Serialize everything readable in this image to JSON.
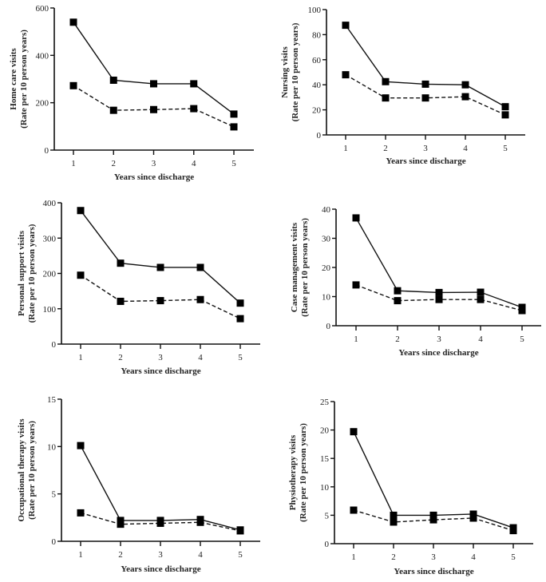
{
  "chart_data": [
    {
      "id": "home-care",
      "type": "line",
      "title": "",
      "xlabel": "Years since discharge",
      "ylabel": [
        "Home care visits",
        "(Rate per 10 person years)"
      ],
      "x": [
        1,
        2,
        3,
        4,
        5
      ],
      "xticks": [
        "1",
        "2",
        "3",
        "4",
        "5"
      ],
      "ylim": [
        0,
        600
      ],
      "yticks": [
        0,
        200,
        400,
        600
      ],
      "grid": false,
      "series": [
        {
          "name": "series-solid",
          "style": "solid",
          "marker": "square",
          "values": [
            540,
            295,
            280,
            280,
            152
          ]
        },
        {
          "name": "series-dashed",
          "style": "dashed",
          "marker": "square",
          "values": [
            272,
            168,
            171,
            175,
            98
          ]
        }
      ]
    },
    {
      "id": "nursing",
      "type": "line",
      "title": "",
      "xlabel": "Years since discharge",
      "ylabel": [
        "Nursing visits",
        "(Rate per 10 person years)"
      ],
      "x": [
        1,
        2,
        3,
        4,
        5
      ],
      "xticks": [
        "1",
        "2",
        "3",
        "4",
        "5"
      ],
      "ylim": [
        0,
        100
      ],
      "yticks": [
        0,
        20,
        40,
        60,
        80,
        100
      ],
      "grid": false,
      "series": [
        {
          "name": "series-solid",
          "style": "solid",
          "marker": "square",
          "values": [
            87.5,
            42.5,
            40.5,
            40,
            22.5
          ]
        },
        {
          "name": "series-dashed",
          "style": "dashed",
          "marker": "square",
          "values": [
            48,
            29.5,
            29.5,
            30.5,
            16
          ]
        }
      ]
    },
    {
      "id": "personal-support",
      "type": "line",
      "title": "",
      "xlabel": "Years since discharge",
      "ylabel": [
        "Personal support visits",
        "(Rate per 10 person years)"
      ],
      "x": [
        1,
        2,
        3,
        4,
        5
      ],
      "xticks": [
        "1",
        "2",
        "3",
        "4",
        "5"
      ],
      "ylim": [
        0,
        400
      ],
      "yticks": [
        0,
        100,
        200,
        300,
        400
      ],
      "grid": false,
      "series": [
        {
          "name": "series-solid",
          "style": "solid",
          "marker": "square",
          "values": [
            378,
            229,
            217,
            217,
            116
          ]
        },
        {
          "name": "series-dashed",
          "style": "dashed",
          "marker": "square",
          "values": [
            195,
            121,
            123,
            126,
            72
          ]
        }
      ]
    },
    {
      "id": "case-management",
      "type": "line",
      "title": "",
      "xlabel": "Years since discharge",
      "ylabel": [
        "Case management visits",
        "(Rate per 10 person years)"
      ],
      "x": [
        1,
        2,
        3,
        4,
        5
      ],
      "xticks": [
        "1",
        "2",
        "3",
        "4",
        "5"
      ],
      "ylim": [
        0,
        40
      ],
      "yticks": [
        0,
        10,
        20,
        30,
        40
      ],
      "grid": false,
      "series": [
        {
          "name": "series-solid",
          "style": "solid",
          "marker": "square",
          "values": [
            37,
            12,
            11.4,
            11.5,
            6.3
          ]
        },
        {
          "name": "series-dashed",
          "style": "dashed",
          "marker": "square",
          "values": [
            14,
            8.6,
            9,
            9,
            5.2
          ]
        }
      ]
    },
    {
      "id": "occupational-therapy",
      "type": "line",
      "title": "",
      "xlabel": "Years since discharge",
      "ylabel": [
        "Occupational therapy visits",
        "(Rate per 10 person years)"
      ],
      "x": [
        1,
        2,
        3,
        4,
        5
      ],
      "xticks": [
        "1",
        "2",
        "3",
        "4",
        "5"
      ],
      "ylim": [
        0,
        15
      ],
      "yticks": [
        0,
        5,
        10,
        15
      ],
      "grid": false,
      "series": [
        {
          "name": "series-solid",
          "style": "solid",
          "marker": "square",
          "values": [
            10.1,
            2.2,
            2.2,
            2.3,
            1.2
          ]
        },
        {
          "name": "series-dashed",
          "style": "dashed",
          "marker": "square",
          "values": [
            3,
            1.8,
            1.9,
            2,
            1.1
          ]
        }
      ]
    },
    {
      "id": "physiotherapy",
      "type": "line",
      "title": "",
      "xlabel": "Years since discharge",
      "ylabel": [
        "Physiotherapy visits",
        "(Rate per 10 person years)"
      ],
      "x": [
        1,
        2,
        3,
        4,
        5
      ],
      "xticks": [
        "1",
        "2",
        "3",
        "4",
        "5"
      ],
      "ylim": [
        0,
        25
      ],
      "yticks": [
        0,
        5,
        10,
        15,
        20,
        25
      ],
      "grid": false,
      "series": [
        {
          "name": "series-solid",
          "style": "solid",
          "marker": "square",
          "values": [
            19.7,
            5,
            5,
            5.2,
            2.8
          ]
        },
        {
          "name": "series-dashed",
          "style": "dashed",
          "marker": "square",
          "values": [
            5.9,
            3.8,
            4.2,
            4.5,
            2.3
          ]
        }
      ]
    }
  ],
  "colors": {
    "line": "#111111",
    "marker": "#000000",
    "text": "#222222"
  }
}
